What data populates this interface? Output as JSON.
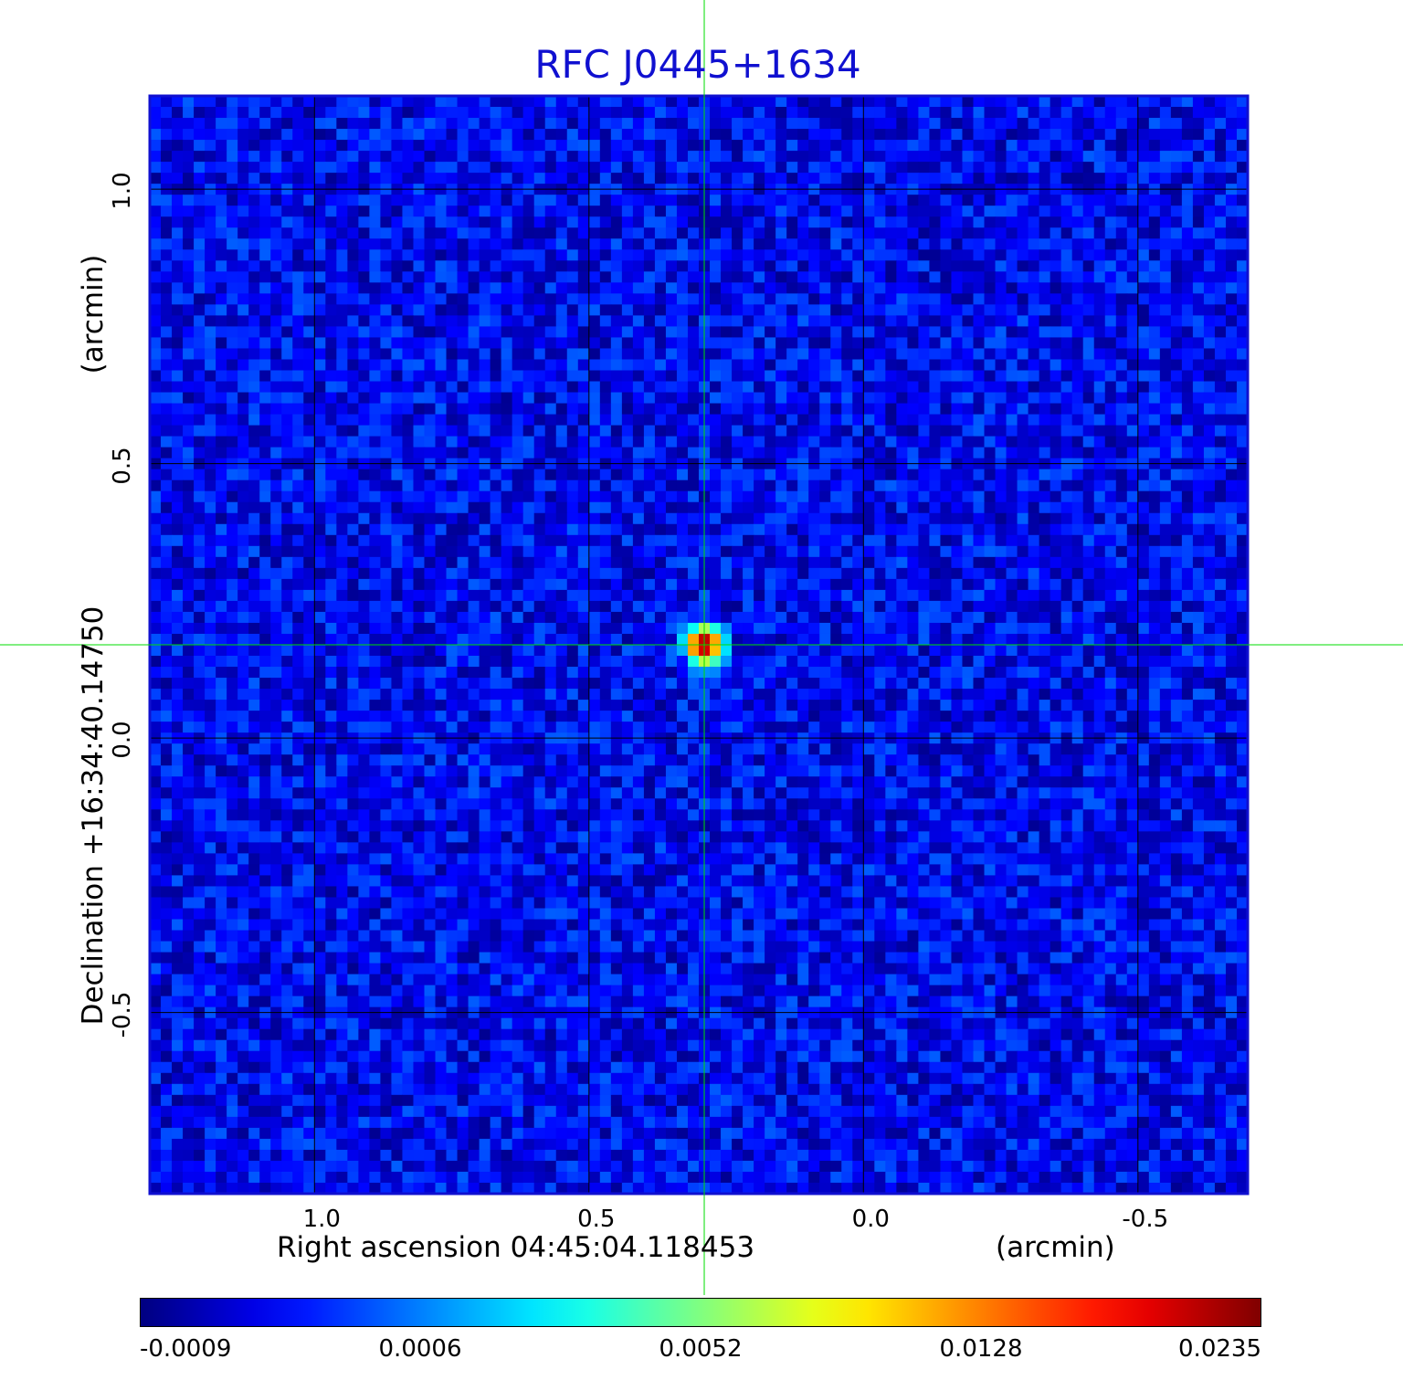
{
  "chart_data": {
    "type": "heatmap",
    "title": "RFC J0445+1634",
    "xlabel": "Right ascension  04:45:04.118453",
    "xunit": "(arcmin)",
    "ylabel": "Declination  +16:34:40.14750",
    "yunit": "(arcmin)",
    "x_ticks": [
      "1.0",
      "0.5",
      "0.0",
      "-0.5"
    ],
    "x_tick_values": [
      1.0,
      0.5,
      0.0,
      -0.5
    ],
    "y_ticks": [
      "1.0",
      "0.5",
      "0.0",
      "-0.5"
    ],
    "y_tick_values": [
      1.0,
      0.5,
      0.0,
      -0.5
    ],
    "xlim": [
      1.3,
      -0.7
    ],
    "ylim": [
      -0.83,
      1.17
    ],
    "grid": true,
    "crosshair": {
      "x": 0.29,
      "y": 0.17,
      "color": "#00dd00"
    },
    "source": {
      "x": 0.29,
      "y": 0.17,
      "peak": 0.0235
    },
    "background_level": -0.0002,
    "colormap": "jet",
    "colorbar_ticks": [
      "-0.0009",
      "0.0006",
      "0.0052",
      "0.0128",
      "0.0235"
    ],
    "colorbar_tick_values": [
      -0.0009,
      0.0006,
      0.0052,
      0.0128,
      0.0235
    ]
  }
}
